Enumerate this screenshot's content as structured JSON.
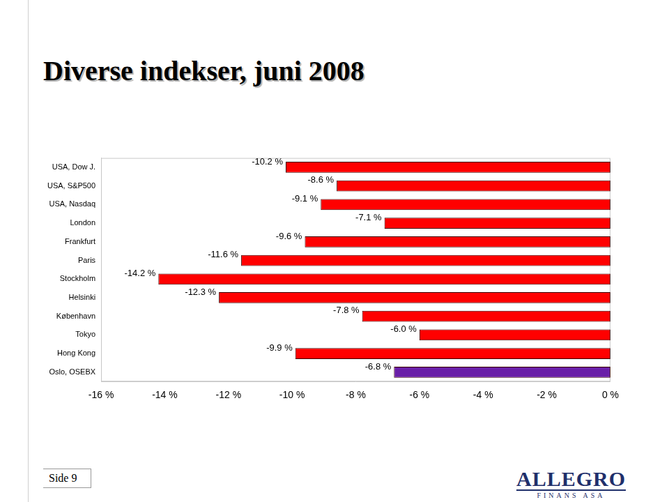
{
  "chart_data": {
    "type": "bar",
    "orientation": "horizontal",
    "title": "Diverse indekser, juni 2008",
    "categories": [
      "USA, Dow J.",
      "USA, S&P500",
      "USA, Nasdaq",
      "London",
      "Frankfurt",
      "Paris",
      "Stockholm",
      "Helsinki",
      "København",
      "Tokyo",
      "Hong Kong",
      "Oslo, OSEBX"
    ],
    "values": [
      -10.2,
      -8.6,
      -9.1,
      -7.1,
      -9.6,
      -11.6,
      -14.2,
      -12.3,
      -7.8,
      -6.0,
      -9.9,
      -6.8
    ],
    "value_labels": [
      "-10.2 %",
      "-8.6 %",
      "-9.1 %",
      "-7.1 %",
      "-9.6 %",
      "-11.6 %",
      "-14.2 %",
      "-12.3 %",
      "-7.8 %",
      "-6.0 %",
      "-9.9 %",
      "-6.8 %"
    ],
    "data_labels": true,
    "colors": [
      "#ff0000",
      "#ff0000",
      "#ff0000",
      "#ff0000",
      "#ff0000",
      "#ff0000",
      "#ff0000",
      "#ff0000",
      "#ff0000",
      "#ff0000",
      "#ff0000",
      "#6a1fa8"
    ],
    "xlim": [
      -16,
      0
    ],
    "xticks": [
      {
        "value": -16,
        "label": "-16 %"
      },
      {
        "value": -14,
        "label": "-14 %"
      },
      {
        "value": -12,
        "label": "-12 %"
      },
      {
        "value": -10,
        "label": "-10 %"
      },
      {
        "value": -8,
        "label": "-8 %"
      },
      {
        "value": -6,
        "label": "-6 %"
      },
      {
        "value": -4,
        "label": "-4 %"
      },
      {
        "value": -2,
        "label": "-2 %"
      },
      {
        "value": 0,
        "label": "0 %"
      }
    ],
    "grid": false
  },
  "footer": {
    "page": "Side 9",
    "logo": "ALLEGRO",
    "logo_sub": "FINANS ASA"
  }
}
